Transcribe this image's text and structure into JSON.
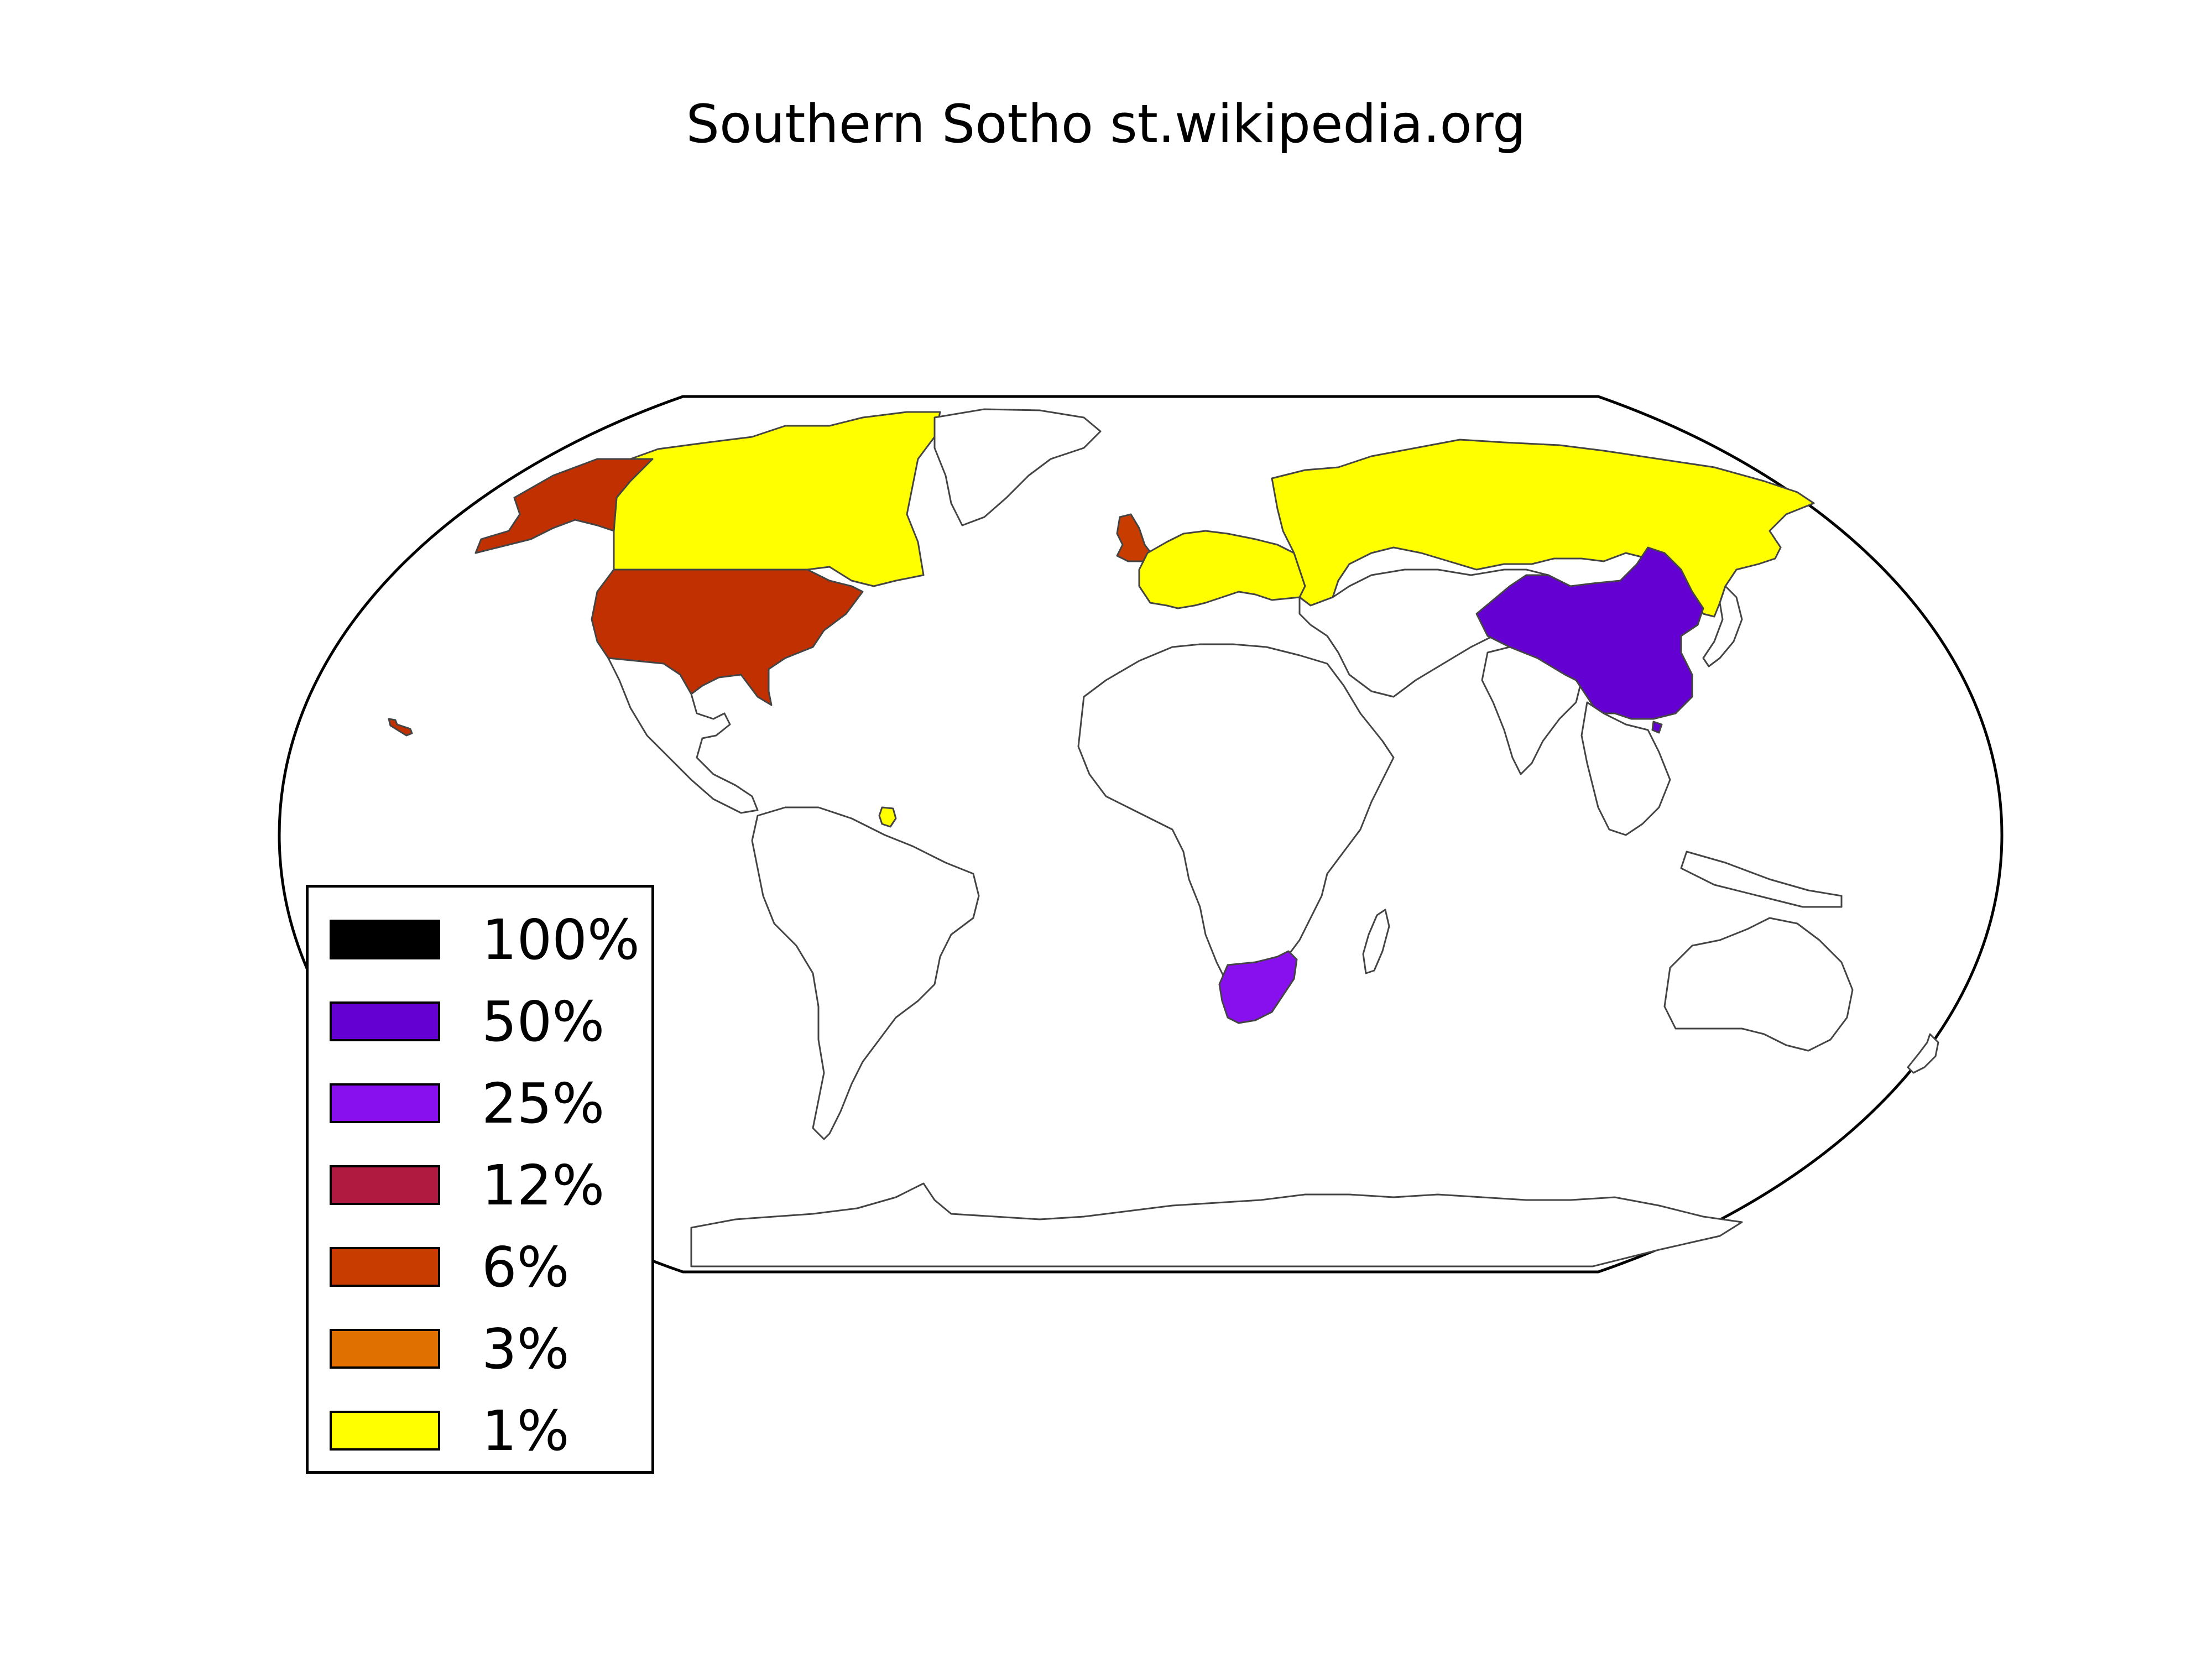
{
  "title": "Southern Sotho st.wikipedia.org",
  "map": {
    "projection": "robinson",
    "ocean_color": "#ffffff",
    "border_color": "#444444",
    "default_land_color": "#ffffff",
    "regions": [
      {
        "name": "Canada",
        "color": "#ffff00",
        "icon": "canada-shape"
      },
      {
        "name": "Greenland",
        "color": "#ffffff",
        "icon": "greenland-shape"
      },
      {
        "name": "Alaska",
        "color": "#c03000",
        "icon": "alaska-shape"
      },
      {
        "name": "United States",
        "color": "#c03000",
        "icon": "usa-shape"
      },
      {
        "name": "Mexico and Central America",
        "color": "#ffffff",
        "icon": "mexico-shape"
      },
      {
        "name": "South America",
        "color": "#ffffff",
        "icon": "south-america-shape"
      },
      {
        "name": "French Guiana",
        "color": "#ffff00",
        "icon": "french-guiana-shape"
      },
      {
        "name": "United Kingdom",
        "color": "#c83c00",
        "icon": "uk-shape"
      },
      {
        "name": "Europe (1% group)",
        "color": "#ffff00",
        "icon": "europe-shape"
      },
      {
        "name": "Russia",
        "color": "#ffff00",
        "icon": "russia-shape"
      },
      {
        "name": "Africa",
        "color": "#ffffff",
        "icon": "africa-shape"
      },
      {
        "name": "South Africa",
        "color": "#8810ee",
        "icon": "south-africa-shape"
      },
      {
        "name": "Middle East and Central Asia",
        "color": "#ffffff",
        "icon": "asia-shape"
      },
      {
        "name": "India",
        "color": "#ffffff",
        "icon": "india-shape"
      },
      {
        "name": "China",
        "color": "#6400d2",
        "icon": "china-shape"
      },
      {
        "name": "Southeast Asia",
        "color": "#ffffff",
        "icon": "se-asia-shape"
      },
      {
        "name": "Japan",
        "color": "#ffffff",
        "icon": "japan-shape"
      },
      {
        "name": "Australia",
        "color": "#ffffff",
        "icon": "australia-shape"
      },
      {
        "name": "New Zealand",
        "color": "#ffffff",
        "icon": "new-zealand-shape"
      },
      {
        "name": "Antarctica",
        "color": "#ffffff",
        "icon": "antarctica-shape"
      },
      {
        "name": "Madagascar",
        "color": "#ffffff",
        "icon": "madagascar-shape"
      },
      {
        "name": "Hawaii",
        "color": "#c03000",
        "icon": "hawaii-shape"
      }
    ]
  },
  "legend": {
    "items": [
      {
        "label": "100%",
        "color": "#000000"
      },
      {
        "label": "50%",
        "color": "#6400d2"
      },
      {
        "label": "25%",
        "color": "#8810ee"
      },
      {
        "label": "12%",
        "color": "#b01a40"
      },
      {
        "label": "6%",
        "color": "#c83c00"
      },
      {
        "label": "3%",
        "color": "#e07000"
      },
      {
        "label": "1%",
        "color": "#ffff00"
      }
    ]
  }
}
